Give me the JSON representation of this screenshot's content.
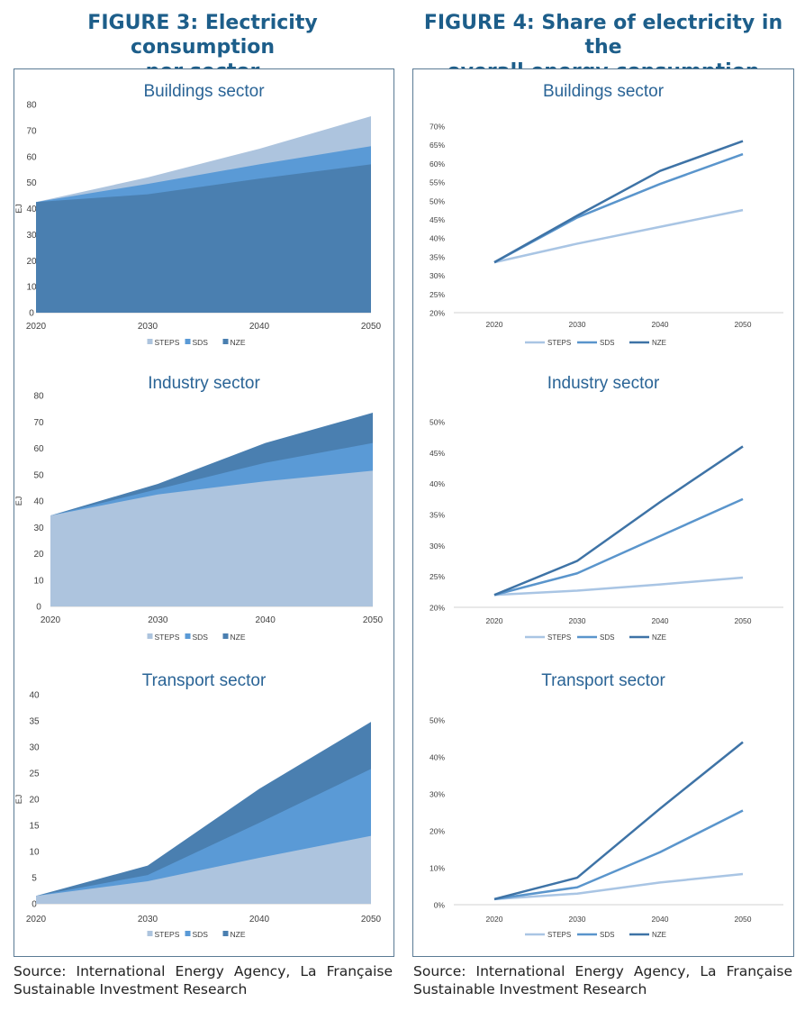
{
  "figures": {
    "left": {
      "title_line1": "FIGURE 3: Electricity consumption",
      "title_line2": "per sector",
      "source": "Source: International Energy Agency, La Française Sustainable Investment Research"
    },
    "right": {
      "title_line1": "FIGURE 4: Share of electricity in the",
      "title_line2": "overall energy consumption",
      "source": "Source: International Energy Agency, La Française Sustainable Investment Research"
    }
  },
  "colors": {
    "STEPS": "#adc4de",
    "SDS": "#5a9ad6",
    "NZE": "#4a7fb0",
    "line_STEPS": "#a9c5e4",
    "line_SDS": "#5a95cc",
    "line_NZE": "#3e73a6",
    "title": "#2a6496"
  },
  "chart_data": [
    {
      "type": "area",
      "title": "Buildings sector",
      "ylabel": "EJ",
      "ylim": [
        0,
        80
      ],
      "yticks": [
        "0",
        "10",
        "20",
        "30",
        "40",
        "50",
        "60",
        "70",
        "80"
      ],
      "x": [
        "2020",
        "2030",
        "2040",
        "2050"
      ],
      "legend": [
        "STEPS",
        "SDS",
        "NZE"
      ],
      "series": [
        {
          "name": "STEPS",
          "values": [
            42.5,
            52,
            63,
            75.5
          ]
        },
        {
          "name": "SDS",
          "values": [
            42.5,
            49.5,
            57,
            64
          ]
        },
        {
          "name": "NZE",
          "values": [
            42.5,
            45.5,
            51.5,
            57
          ]
        }
      ]
    },
    {
      "type": "area",
      "title": "Industry sector",
      "ylabel": "EJ",
      "ylim": [
        0,
        80
      ],
      "yticks": [
        "0",
        "10",
        "20",
        "30",
        "40",
        "50",
        "60",
        "70",
        "80"
      ],
      "x": [
        "2020",
        "2030",
        "2040",
        "2050"
      ],
      "legend": [
        "STEPS",
        "SDS",
        "NZE"
      ],
      "series": [
        {
          "name": "NZE",
          "values": [
            34.5,
            46.5,
            62,
            73.5
          ]
        },
        {
          "name": "SDS",
          "values": [
            34.5,
            44.5,
            54.5,
            62
          ]
        },
        {
          "name": "STEPS",
          "values": [
            34.5,
            42.5,
            47.5,
            51.5
          ]
        }
      ]
    },
    {
      "type": "area",
      "title": "Transport sector",
      "ylabel": "EJ",
      "ylim": [
        0,
        40
      ],
      "yticks": [
        "0",
        "5",
        "10",
        "15",
        "20",
        "25",
        "30",
        "35",
        "40"
      ],
      "x": [
        "2020",
        "2030",
        "2040",
        "2050"
      ],
      "legend": [
        "STEPS",
        "SDS",
        "NZE"
      ],
      "series": [
        {
          "name": "NZE",
          "values": [
            1.5,
            7.3,
            22,
            34.8
          ]
        },
        {
          "name": "SDS",
          "values": [
            1.5,
            5.5,
            15.5,
            25.8
          ]
        },
        {
          "name": "STEPS",
          "values": [
            1.5,
            4.3,
            8.8,
            13
          ]
        }
      ]
    },
    {
      "type": "line",
      "title": "Buildings sector",
      "ylim": [
        20,
        70
      ],
      "yticks": [
        "20%",
        "25%",
        "30%",
        "35%",
        "40%",
        "45%",
        "50%",
        "55%",
        "60%",
        "65%",
        "70%"
      ],
      "x": [
        "2020",
        "2030",
        "2040",
        "2050"
      ],
      "legend": [
        "STEPS",
        "SDS",
        "NZE"
      ],
      "series": [
        {
          "name": "STEPS",
          "values": [
            33.5,
            38.5,
            43,
            47.5
          ]
        },
        {
          "name": "SDS",
          "values": [
            33.5,
            45.5,
            54.5,
            62.5
          ]
        },
        {
          "name": "NZE",
          "values": [
            33.5,
            46,
            58,
            66
          ]
        }
      ]
    },
    {
      "type": "line",
      "title": "Industry sector",
      "ylim": [
        20,
        50
      ],
      "yticks": [
        "20%",
        "25%",
        "30%",
        "35%",
        "40%",
        "45%",
        "50%"
      ],
      "x": [
        "2020",
        "2030",
        "2040",
        "2050"
      ],
      "legend": [
        "STEPS",
        "SDS",
        "NZE"
      ],
      "series": [
        {
          "name": "STEPS",
          "values": [
            22,
            22.7,
            23.7,
            24.8
          ]
        },
        {
          "name": "SDS",
          "values": [
            22,
            25.5,
            31.5,
            37.5
          ]
        },
        {
          "name": "NZE",
          "values": [
            22,
            27.5,
            37,
            46
          ]
        }
      ]
    },
    {
      "type": "line",
      "title": "Transport sector",
      "ylim": [
        0,
        50
      ],
      "yticks": [
        "0%",
        "10%",
        "20%",
        "30%",
        "40%",
        "50%"
      ],
      "x": [
        "2020",
        "2030",
        "2040",
        "2050"
      ],
      "legend": [
        "STEPS",
        "SDS",
        "NZE"
      ],
      "series": [
        {
          "name": "STEPS",
          "values": [
            1.5,
            3,
            6,
            8.3
          ]
        },
        {
          "name": "SDS",
          "values": [
            1.5,
            4.7,
            14.2,
            25.5
          ]
        },
        {
          "name": "NZE",
          "values": [
            1.5,
            7.3,
            26,
            44
          ]
        }
      ]
    }
  ]
}
